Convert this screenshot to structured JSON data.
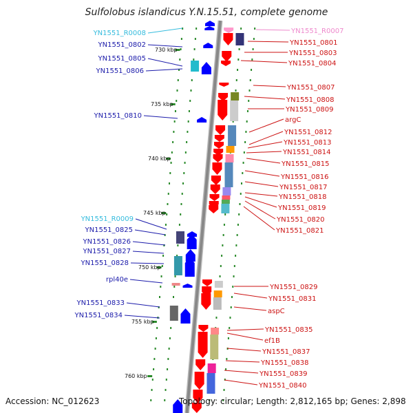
{
  "title": "Sulfolobus islandicus Y.N.15.51, complete genome",
  "accession": "Accession: NC_012623",
  "topology": "Topology: circular; Length: 2,812,165 bp; Genes: 2,898",
  "kbp_ticks": [
    "730 kbp",
    "735 kbp",
    "740 kbp",
    "745 kbp",
    "750 kbp",
    "755 kbp",
    "760 kbp"
  ],
  "left_genes": [
    {
      "label": "YN1551_R0008",
      "color": "#33bbdd"
    },
    {
      "label": "YN1551_0802",
      "color": "#1a1aaa"
    },
    {
      "label": "YN1551_0805",
      "color": "#1a1aaa"
    },
    {
      "label": "YN1551_0806",
      "color": "#1a1aaa"
    },
    {
      "label": "YN1551_0810",
      "color": "#1a1aaa"
    },
    {
      "label": "YN1551_R0009",
      "color": "#33bbdd"
    },
    {
      "label": "YN1551_0825",
      "color": "#1a1aaa"
    },
    {
      "label": "YN1551_0826",
      "color": "#1a1aaa"
    },
    {
      "label": "YN1551_0827",
      "color": "#1a1aaa"
    },
    {
      "label": "YN1551_0828",
      "color": "#1a1aaa"
    },
    {
      "label": "rpl40e",
      "color": "#1a1aaa"
    },
    {
      "label": "YN1551_0833",
      "color": "#1a1aaa"
    },
    {
      "label": "YN1551_0834",
      "color": "#1a1aaa"
    }
  ],
  "right_genes": [
    {
      "label": "YN1551_R0007",
      "color": "#ee88cc"
    },
    {
      "label": "YN1551_0801",
      "color": "#cc1111"
    },
    {
      "label": "YN1551_0803",
      "color": "#cc1111"
    },
    {
      "label": "YN1551_0804",
      "color": "#cc1111"
    },
    {
      "label": "YN1551_0807",
      "color": "#cc1111"
    },
    {
      "label": "YN1551_0808",
      "color": "#cc1111"
    },
    {
      "label": "YN1551_0809",
      "color": "#cc1111"
    },
    {
      "label": "argC",
      "color": "#cc1111"
    },
    {
      "label": "YN1551_0812",
      "color": "#cc1111"
    },
    {
      "label": "YN1551_0813",
      "color": "#cc1111"
    },
    {
      "label": "YN1551_0814",
      "color": "#cc1111"
    },
    {
      "label": "YN1551_0815",
      "color": "#cc1111"
    },
    {
      "label": "YN1551_0816",
      "color": "#cc1111"
    },
    {
      "label": "YN1551_0817",
      "color": "#cc1111"
    },
    {
      "label": "YN1551_0818",
      "color": "#cc1111"
    },
    {
      "label": "YN1551_0819",
      "color": "#cc1111"
    },
    {
      "label": "YN1551_0820",
      "color": "#cc1111"
    },
    {
      "label": "YN1551_0821",
      "color": "#cc1111"
    },
    {
      "label": "YN1551_0829",
      "color": "#cc1111"
    },
    {
      "label": "YN1551_0831",
      "color": "#cc1111"
    },
    {
      "label": "aspC",
      "color": "#cc1111"
    },
    {
      "label": "YN1551_0835",
      "color": "#cc1111"
    },
    {
      "label": "ef1B",
      "color": "#cc1111"
    },
    {
      "label": "YN1551_0837",
      "color": "#cc1111"
    },
    {
      "label": "YN1551_0838",
      "color": "#cc1111"
    },
    {
      "label": "YN1551_0839",
      "color": "#cc1111"
    },
    {
      "label": "YN1551_0840",
      "color": "#cc1111"
    }
  ],
  "colors": {
    "forward": "#ff0000",
    "reverse": "#0000ff",
    "backbone": "#888888"
  }
}
